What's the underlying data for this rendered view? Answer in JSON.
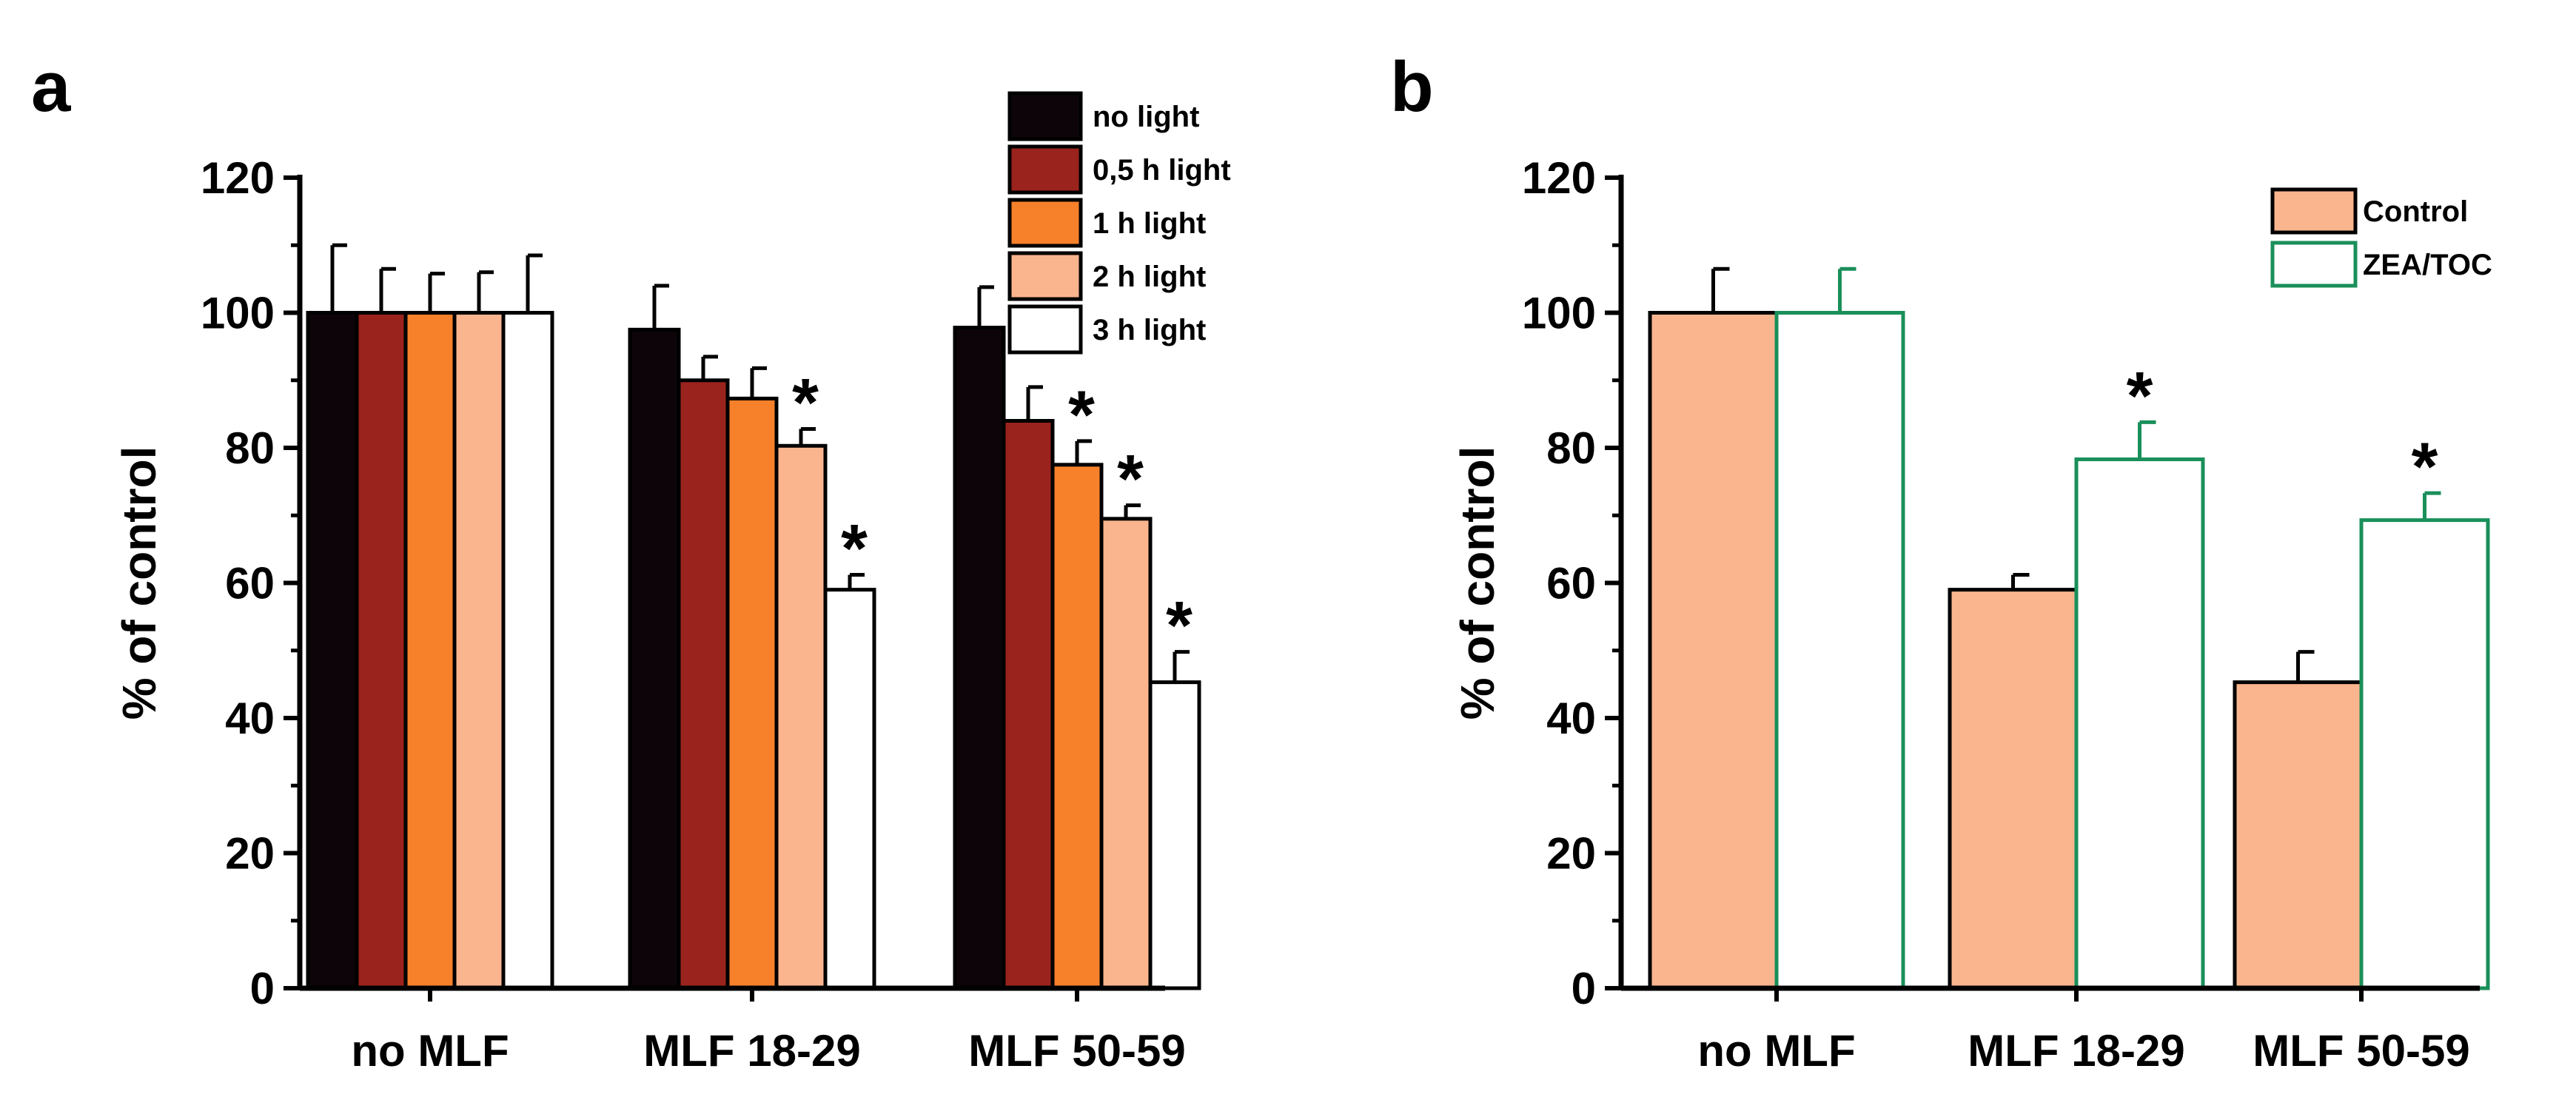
{
  "chart_data": [
    {
      "panel": "a",
      "type": "bar",
      "ylabel": "% of control",
      "ylim": [
        0,
        120
      ],
      "yticks": [
        0,
        20,
        40,
        60,
        80,
        100,
        120
      ],
      "categories": [
        "no MLF",
        "MLF 18-29",
        "MLF 50-59"
      ],
      "legend_position": "top-right",
      "series": [
        {
          "name": "no light",
          "color": "#0d0409",
          "stroke": "#000000",
          "values": [
            100,
            97.5,
            97.8
          ],
          "errors": [
            10,
            6.5,
            6
          ],
          "significant": [
            false,
            false,
            false
          ]
        },
        {
          "name": "0,5 h light",
          "color": "#9a231d",
          "stroke": "#000000",
          "values": [
            100,
            90,
            84
          ],
          "errors": [
            6.5,
            3.5,
            5
          ],
          "significant": [
            false,
            false,
            false
          ]
        },
        {
          "name": "1 h light",
          "color": "#f7802b",
          "stroke": "#000000",
          "values": [
            100,
            87.3,
            77.5
          ],
          "errors": [
            5.8,
            4.5,
            3.5
          ],
          "significant": [
            false,
            false,
            true
          ]
        },
        {
          "name": "2 h light",
          "color": "#fbb58e",
          "stroke": "#000000",
          "values": [
            100,
            80.3,
            69.5
          ],
          "errors": [
            6,
            2.5,
            2
          ],
          "significant": [
            false,
            true,
            true
          ]
        },
        {
          "name": "3 h light",
          "color": "#ffffff",
          "stroke": "#000000",
          "values": [
            100,
            59,
            45.3
          ],
          "errors": [
            8.5,
            2.2,
            4.5
          ],
          "significant": [
            false,
            true,
            true
          ]
        }
      ],
      "annotation": "*"
    },
    {
      "panel": "b",
      "type": "bar",
      "ylabel": "% of control",
      "ylim": [
        0,
        120
      ],
      "yticks": [
        0,
        20,
        40,
        60,
        80,
        100,
        120
      ],
      "categories": [
        "no MLF",
        "MLF 18-29",
        "MLF 50-59"
      ],
      "legend_position": "top-right",
      "series": [
        {
          "name": "Control",
          "color": "#fbb58e",
          "stroke": "#000000",
          "values": [
            100,
            59,
            45.3
          ],
          "errors": [
            6.5,
            2.2,
            4.5
          ],
          "significant": [
            false,
            false,
            false
          ]
        },
        {
          "name": "ZEA/TOC",
          "color": "#ffffff",
          "stroke": "#1a8f5a",
          "values": [
            100,
            78.3,
            69.3
          ],
          "errors": [
            6.5,
            5.5,
            4
          ],
          "significant": [
            false,
            true,
            true
          ]
        }
      ],
      "annotation": "*"
    }
  ]
}
